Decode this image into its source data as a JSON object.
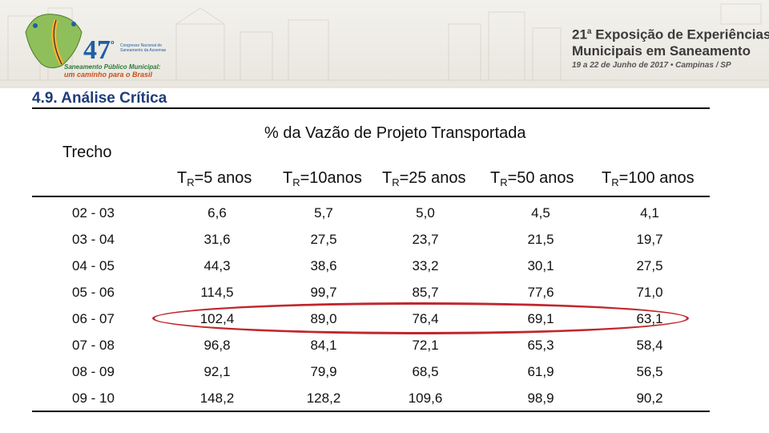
{
  "banner": {
    "logo_number": "47",
    "logo_number_suffix": "º",
    "logo_congress": "Congresso Nacional de Saneamento da Assemae",
    "logo_sub1": "Saneamento Público Municipal:",
    "logo_sub2": "um caminho para o Brasil",
    "event_line1_num": "21",
    "event_line1_sup": "a",
    "event_line1_text": " Exposição de Experiências",
    "event_line2": "Municipais em Saneamento",
    "event_line3": "19 a 22 de Junho de 2017 • Campinas / SP"
  },
  "section_title": "4.9. Análise Crítica",
  "table": {
    "main_header": "% da Vazão de Projeto Transportada",
    "trecho_header": "Trecho",
    "tr_headers": [
      {
        "pre": "T",
        "sub": "R",
        "post": "=5 anos"
      },
      {
        "pre": "T",
        "sub": "R",
        "post": "=10anos"
      },
      {
        "pre": "T",
        "sub": "R",
        "post": "=25 anos"
      },
      {
        "pre": "T",
        "sub": "R",
        "post": "=50 anos"
      },
      {
        "pre": "T",
        "sub": "R",
        "post": "=100 anos"
      }
    ],
    "rows": [
      {
        "trecho": "02 - 03",
        "values": [
          "6,6",
          "5,7",
          "5,0",
          "4,5",
          "4,1"
        ]
      },
      {
        "trecho": "03 - 04",
        "values": [
          "31,6",
          "27,5",
          "23,7",
          "21,5",
          "19,7"
        ]
      },
      {
        "trecho": "04 - 05",
        "values": [
          "44,3",
          "38,6",
          "33,2",
          "30,1",
          "27,5"
        ]
      },
      {
        "trecho": "05 - 06",
        "values": [
          "114,5",
          "99,7",
          "85,7",
          "77,6",
          "71,0"
        ]
      },
      {
        "trecho": "06 - 07",
        "values": [
          "102,4",
          "89,0",
          "76,4",
          "69,1",
          "63,1"
        ]
      },
      {
        "trecho": "07 - 08",
        "values": [
          "96,8",
          "84,1",
          "72,1",
          "65,3",
          "58,4"
        ]
      },
      {
        "trecho": "08 - 09",
        "values": [
          "92,1",
          "79,9",
          "68,5",
          "61,9",
          "56,5"
        ]
      },
      {
        "trecho": "09 - 10",
        "values": [
          "148,2",
          "128,2",
          "109,6",
          "98,9",
          "90,2"
        ]
      }
    ],
    "highlighted_row": "06 - 07"
  },
  "colors": {
    "title_blue": "#1f3d7a",
    "highlight_red": "#c0272d"
  }
}
